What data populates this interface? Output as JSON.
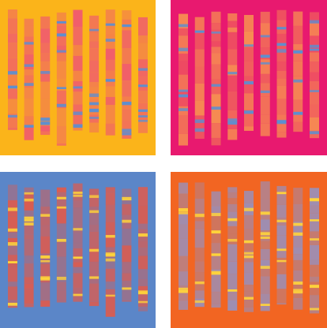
{
  "panels": [
    {
      "background": "#fbb41a",
      "column_color": "#ee4f7a",
      "band_color": "#5a8fd2"
    },
    {
      "background": "#e8196f",
      "column_color": "#f9a24c",
      "band_color": "#5a8fd2"
    },
    {
      "background": "#5b86c8",
      "column_color": "#f0553c",
      "band_color": "#ffd43a"
    },
    {
      "background": "#f26522",
      "column_color": "#8f95cc",
      "band_color": "#ffd43a"
    }
  ]
}
